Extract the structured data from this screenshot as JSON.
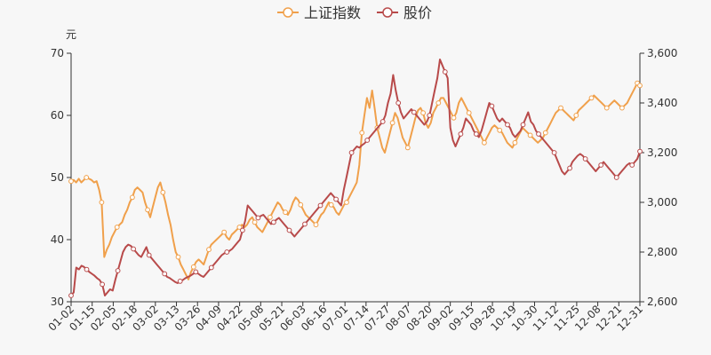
{
  "chart_data": {
    "type": "line",
    "y_left_unit": "元",
    "y_left_ticks": [
      "30",
      "40",
      "50",
      "60",
      "70"
    ],
    "y_left_lim": [
      30,
      70
    ],
    "y_right_ticks": [
      "2,600",
      "2,800",
      "3,000",
      "3,200",
      "3,400",
      "3,600"
    ],
    "y_right_lim": [
      2600,
      3600
    ],
    "legend": {
      "position": "top-center"
    },
    "grid": false,
    "x_ticks": [
      "01-02",
      "01-15",
      "02-05",
      "02-18",
      "03-02",
      "03-13",
      "03-26",
      "04-09",
      "04-22",
      "05-08",
      "05-21",
      "06-03",
      "06-16",
      "07-01",
      "07-14",
      "07-27",
      "08-07",
      "08-20",
      "09-02",
      "09-15",
      "09-28",
      "10-19",
      "10-30",
      "11-12",
      "11-25",
      "12-08",
      "12-21",
      "12-31"
    ],
    "series": [
      {
        "name": "上证指数",
        "axis": "right",
        "color": "#f0a04b",
        "values": [
          3085,
          3090,
          3080,
          3095,
          3080,
          3090,
          3100,
          3095,
          3090,
          3080,
          3085,
          3050,
          3000,
          2780,
          2810,
          2830,
          2860,
          2880,
          2900,
          2910,
          2920,
          2950,
          2970,
          3000,
          3020,
          3050,
          3060,
          3050,
          3040,
          3000,
          2970,
          2940,
          2980,
          3020,
          3060,
          3080,
          3040,
          3000,
          2950,
          2910,
          2850,
          2800,
          2780,
          2750,
          2730,
          2710,
          2690,
          2720,
          2740,
          2760,
          2770,
          2760,
          2750,
          2780,
          2810,
          2830,
          2840,
          2850,
          2860,
          2870,
          2880,
          2860,
          2850,
          2870,
          2880,
          2890,
          2900,
          2910,
          2900,
          2910,
          2930,
          2940,
          2920,
          2900,
          2890,
          2880,
          2900,
          2920,
          2940,
          2960,
          2980,
          3000,
          2990,
          2970,
          2960,
          2950,
          2970,
          3000,
          3020,
          3010,
          2990,
          2970,
          2950,
          2940,
          2930,
          2920,
          2910,
          2930,
          2950,
          2960,
          2980,
          3000,
          2990,
          2980,
          2960,
          2950,
          2970,
          2990,
          3000,
          3020,
          3040,
          3060,
          3080,
          3150,
          3280,
          3350,
          3420,
          3380,
          3450,
          3380,
          3300,
          3260,
          3220,
          3200,
          3240,
          3280,
          3320,
          3360,
          3340,
          3300,
          3260,
          3240,
          3220,
          3260,
          3300,
          3340,
          3370,
          3380,
          3360,
          3320,
          3300,
          3320,
          3360,
          3380,
          3400,
          3420,
          3420,
          3400,
          3380,
          3360,
          3340,
          3360,
          3400,
          3420,
          3400,
          3380,
          3360,
          3340,
          3320,
          3300,
          3280,
          3260,
          3240,
          3260,
          3280,
          3300,
          3310,
          3300,
          3290,
          3280,
          3260,
          3240,
          3230,
          3220,
          3240,
          3260,
          3280,
          3300,
          3290,
          3280,
          3270,
          3260,
          3250,
          3240,
          3250,
          3260,
          3280,
          3300,
          3320,
          3340,
          3360,
          3370,
          3380,
          3370,
          3360,
          3350,
          3340,
          3330,
          3350,
          3370,
          3380,
          3390,
          3400,
          3410,
          3420,
          3430,
          3420,
          3410,
          3400,
          3390,
          3380,
          3390,
          3400,
          3410,
          3400,
          3390,
          3380,
          3390,
          3400,
          3420,
          3440,
          3460,
          3480,
          3470
        ]
      },
      {
        "name": "股价",
        "axis": "left",
        "color": "#b84a4a",
        "values": [
          31.0,
          31.5,
          35.5,
          35.2,
          35.8,
          35.6,
          35.2,
          34.8,
          34.5,
          34.2,
          33.8,
          33.5,
          32.8,
          31.0,
          31.5,
          32.0,
          31.8,
          33.5,
          35.0,
          36.5,
          38.0,
          38.8,
          39.2,
          39.0,
          38.5,
          38.0,
          37.5,
          37.2,
          38.0,
          38.8,
          37.5,
          37.0,
          36.5,
          36.0,
          35.5,
          35.0,
          34.5,
          34.0,
          33.8,
          33.5,
          33.2,
          33.0,
          33.3,
          33.5,
          33.8,
          34.0,
          34.2,
          34.5,
          34.8,
          34.5,
          34.2,
          34.0,
          34.5,
          35.0,
          35.5,
          36.0,
          36.5,
          37.0,
          37.5,
          37.8,
          38.0,
          38.2,
          38.5,
          39.0,
          39.5,
          40.0,
          41.5,
          43.0,
          45.5,
          45.0,
          44.5,
          44.0,
          43.5,
          43.8,
          44.0,
          43.5,
          43.0,
          42.5,
          42.8,
          43.2,
          43.5,
          43.0,
          42.5,
          42.0,
          41.5,
          41.0,
          40.5,
          41.0,
          41.5,
          42.0,
          42.5,
          43.0,
          43.5,
          44.0,
          44.5,
          45.0,
          45.5,
          46.0,
          46.5,
          47.0,
          47.5,
          47.0,
          46.5,
          46.0,
          45.5,
          48.0,
          50.0,
          52.0,
          54.0,
          54.5,
          55.0,
          54.8,
          55.2,
          55.5,
          56.0,
          56.5,
          57.0,
          57.5,
          58.0,
          58.5,
          59.0,
          60.0,
          62.0,
          63.5,
          66.5,
          64.0,
          62.0,
          60.5,
          59.5,
          60.0,
          60.5,
          61.0,
          60.5,
          60.0,
          59.5,
          59.0,
          58.5,
          59.0,
          60.0,
          62.0,
          64.0,
          66.0,
          69.0,
          68.0,
          67.0,
          66.0,
          58.0,
          56.0,
          55.0,
          56.0,
          57.0,
          58.0,
          59.5,
          59.0,
          58.5,
          57.5,
          57.0,
          56.5,
          57.5,
          59.0,
          60.5,
          62.0,
          61.5,
          60.5,
          59.5,
          59.0,
          59.5,
          59.0,
          58.5,
          58.0,
          57.0,
          56.5,
          57.0,
          57.5,
          58.5,
          59.5,
          60.5,
          59.0,
          58.5,
          57.5,
          57.0,
          56.5,
          56.0,
          55.5,
          55.0,
          54.5,
          54.0,
          53.0,
          52.0,
          51.0,
          50.5,
          51.0,
          51.5,
          52.5,
          53.0,
          53.5,
          53.8,
          53.5,
          53.0,
          52.5,
          52.0,
          51.5,
          51.0,
          51.5,
          52.0,
          52.5,
          52.0,
          51.5,
          51.0,
          50.5,
          50.0,
          50.5,
          51.0,
          51.5,
          52.0,
          52.3,
          52.0,
          52.5,
          53.0,
          54.2
        ]
      }
    ]
  }
}
